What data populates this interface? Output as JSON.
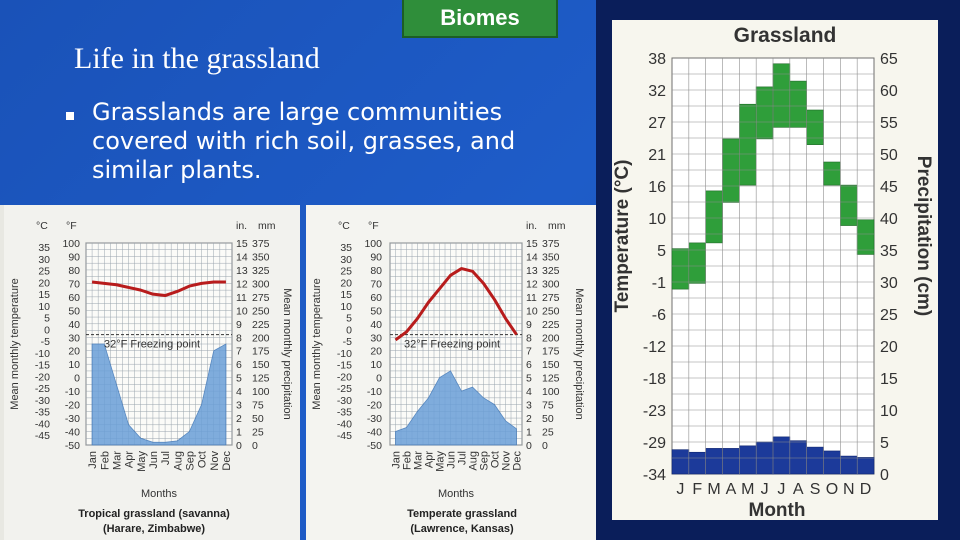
{
  "slide": {
    "badge": "Biomes",
    "title": "Life in the grassland",
    "bullet": "Grasslands are large communities covered with rich soil, grasses, and similar plants."
  },
  "colors": {
    "slide_bg": "#1e5cc8",
    "badge_bg": "#2f8e3a",
    "temp_line": "#b81c1c",
    "precip_fill": "#6a9fd8",
    "band_green": "#2f9e3a",
    "precip_navy": "#1c3a9a"
  },
  "chart_data": [
    {
      "type": "area",
      "left_unit_c": "°C",
      "left_unit_f": "°F",
      "right_unit_in": "in.",
      "right_unit_mm": "mm",
      "ylabel_left": "Mean monthly temperature",
      "ylabel_right": "Mean monthly precipitation",
      "xlabel": "Months",
      "freezing_label": "32°F Freezing point",
      "caption_line1": "Tropical grassland (savanna)",
      "caption_line2": "(Harare, Zimbabwe)",
      "months": [
        "Jan",
        "Feb",
        "Mar",
        "Apr",
        "May",
        "Jun",
        "Jul",
        "Aug",
        "Sep",
        "Oct",
        "Nov",
        "Dec"
      ],
      "c_ticks": [
        "35",
        "30",
        "25",
        "20",
        "15",
        "10",
        "5",
        "0",
        "-5",
        "-10",
        "-15",
        "-20",
        "-25",
        "-30",
        "-35",
        "-40",
        "-45"
      ],
      "f_ticks": [
        "100",
        "90",
        "80",
        "70",
        "60",
        "50",
        "40",
        "30",
        "20",
        "10",
        "0",
        "-10",
        "-20",
        "-30",
        "-40",
        "-50"
      ],
      "in_ticks": [
        "15",
        "14",
        "13",
        "12",
        "11",
        "10",
        "9",
        "8",
        "7",
        "6",
        "5",
        "4",
        "3",
        "2",
        "1",
        "0"
      ],
      "mm_ticks": [
        "375",
        "350",
        "325",
        "300",
        "275",
        "250",
        "225",
        "200",
        "175",
        "150",
        "125",
        "100",
        "75",
        "50",
        "25",
        "0"
      ],
      "temperature_f": [
        71,
        70,
        69,
        67,
        65,
        62,
        61,
        64,
        68,
        70,
        71,
        71
      ],
      "precipitation_in": [
        7.5,
        7.5,
        4.5,
        1.5,
        0.5,
        0.2,
        0.2,
        0.3,
        1.0,
        3.0,
        7.0,
        7.5
      ],
      "ylim_f": [
        -50,
        100
      ],
      "ylim_in": [
        0,
        15
      ]
    },
    {
      "type": "area",
      "left_unit_c": "°C",
      "left_unit_f": "°F",
      "right_unit_in": "in.",
      "right_unit_mm": "mm",
      "ylabel_left": "Mean monthly temperature",
      "ylabel_right": "Mean monthly precipitation",
      "xlabel": "Months",
      "freezing_label": "32°F Freezing point",
      "caption_line1": "Temperate grassland",
      "caption_line2": "(Lawrence, Kansas)",
      "months": [
        "Jan",
        "Feb",
        "Mar",
        "Apr",
        "May",
        "Jun",
        "Jul",
        "Aug",
        "Sep",
        "Oct",
        "Nov",
        "Dec"
      ],
      "c_ticks": [
        "35",
        "30",
        "25",
        "20",
        "15",
        "10",
        "5",
        "0",
        "-5",
        "-10",
        "-15",
        "-20",
        "-25",
        "-30",
        "-35",
        "-40",
        "-45"
      ],
      "f_ticks": [
        "100",
        "90",
        "80",
        "70",
        "60",
        "50",
        "40",
        "30",
        "20",
        "10",
        "0",
        "-10",
        "-20",
        "-30",
        "-40",
        "-50"
      ],
      "in_ticks": [
        "15",
        "14",
        "13",
        "12",
        "11",
        "10",
        "9",
        "8",
        "7",
        "6",
        "5",
        "4",
        "3",
        "2",
        "1",
        "0"
      ],
      "mm_ticks": [
        "375",
        "350",
        "325",
        "300",
        "275",
        "250",
        "225",
        "200",
        "175",
        "150",
        "125",
        "100",
        "75",
        "50",
        "25",
        "0"
      ],
      "temperature_f": [
        28,
        34,
        44,
        56,
        66,
        76,
        81,
        79,
        70,
        58,
        44,
        32
      ],
      "precipitation_in": [
        1.0,
        1.3,
        2.5,
        3.5,
        5.0,
        5.5,
        4.0,
        4.3,
        3.5,
        3.0,
        1.8,
        1.2
      ],
      "ylim_f": [
        -50,
        100
      ],
      "ylim_in": [
        0,
        15
      ]
    },
    {
      "type": "area",
      "title": "Grassland",
      "xlabel": "Month",
      "ylabel_left": "Temperature (°C)",
      "ylabel_right": "Precipitation (cm)",
      "months": [
        "J",
        "F",
        "M",
        "A",
        "M",
        "J",
        "J",
        "A",
        "S",
        "O",
        "N",
        "D"
      ],
      "temp_ticks": [
        "38",
        "32",
        "27",
        "21",
        "16",
        "10",
        "5",
        "-1",
        "-6",
        "-12",
        "-18",
        "-23",
        "-29",
        "-34"
      ],
      "precip_ticks": [
        "65",
        "60",
        "55",
        "50",
        "45",
        "40",
        "35",
        "30",
        "25",
        "20",
        "15",
        "10",
        "5",
        "0"
      ],
      "temp_axis_min": -34,
      "temp_axis_max": 38,
      "precip_axis_max": 65,
      "temp_high_c": [
        5,
        6,
        15,
        24,
        30,
        33,
        37,
        34,
        29,
        20,
        16,
        10
      ],
      "temp_low_c": [
        -2,
        -1,
        6,
        13,
        16,
        24,
        26,
        26,
        23,
        16,
        9,
        4
      ],
      "precipitation_cm": [
        3.8,
        3.4,
        4.0,
        4.0,
        4.4,
        5.0,
        5.8,
        5.2,
        4.2,
        3.6,
        2.8,
        2.6
      ]
    }
  ]
}
